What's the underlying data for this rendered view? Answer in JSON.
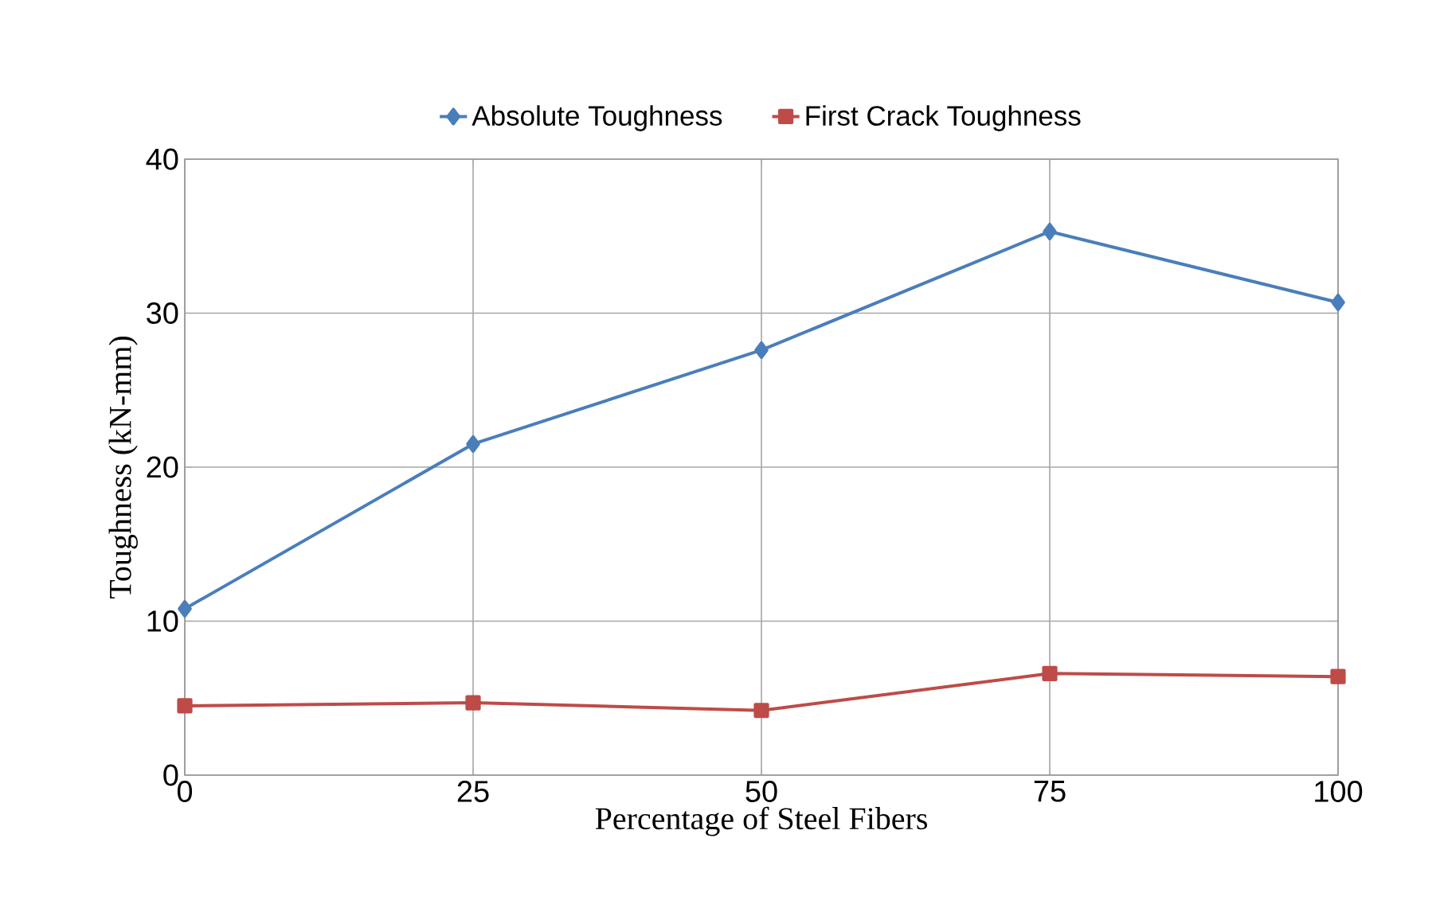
{
  "chart_data": {
    "type": "line",
    "xlabel": "Percentage of Steel Fibers",
    "ylabel": "Toughness (kN-mm)",
    "x": [
      0,
      25,
      50,
      75,
      100
    ],
    "series": [
      {
        "name": "Absolute Toughness",
        "color": "#4a7ebb",
        "marker": "diamond",
        "values": [
          10.8,
          21.5,
          27.6,
          35.3,
          30.7
        ]
      },
      {
        "name": "First Crack Toughness",
        "color": "#be4b48",
        "marker": "square",
        "values": [
          4.5,
          4.7,
          4.2,
          6.6,
          6.4
        ]
      }
    ],
    "xlim": [
      0,
      100
    ],
    "xticks": [
      0,
      25,
      50,
      75,
      100
    ],
    "ylim": [
      0,
      40
    ],
    "yticks": [
      0,
      10,
      20,
      30,
      40
    ],
    "grid": true,
    "legend": "top",
    "line_style": "solid"
  }
}
